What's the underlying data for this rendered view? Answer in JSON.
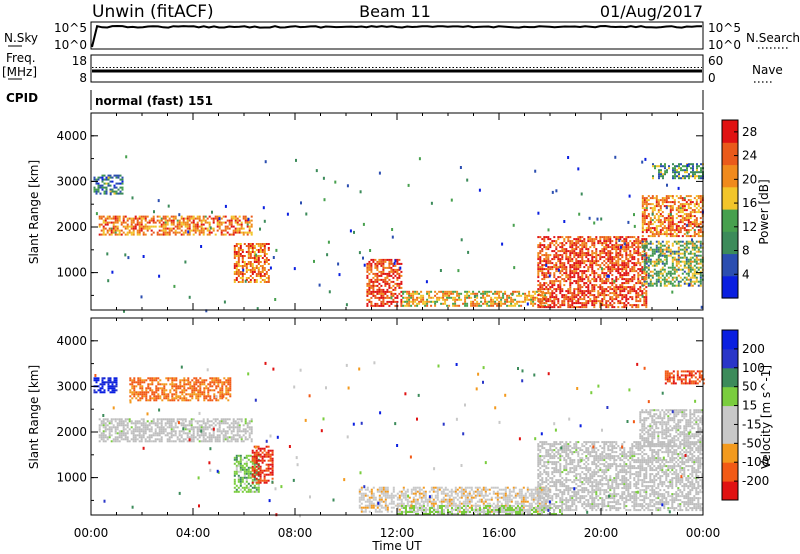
{
  "header": {
    "station": "Unwin (fitACF)",
    "beam": "Beam 11",
    "date": "01/Aug/2017"
  },
  "strip_panels": {
    "nsky": {
      "label": "N.Sky",
      "tick_labels": [
        "10^5",
        "10^0"
      ],
      "right_label": "N.Search",
      "right_tick_labels": [
        "10^5",
        "10^0"
      ]
    },
    "freq": {
      "label_line1": "Freq.",
      "label_line2": "[MHz]",
      "tick_labels": [
        "18",
        "8"
      ],
      "right_label": "Nave",
      "right_tick_labels": [
        "60",
        "0"
      ]
    },
    "cpid": {
      "label": "CPID",
      "mode_text": "normal (fast) 151"
    }
  },
  "colors": {
    "power_scale": [
      "#0a1fe0",
      "#2b4eb0",
      "#3c8b5a",
      "#47a04e",
      "#f2c52a",
      "#f08a1c",
      "#ea5a1a",
      "#e01212"
    ],
    "velocity_scale": [
      "#e01212",
      "#f25a16",
      "#f39a1e",
      "#c8c8c8",
      "#c8c8c8",
      "#7acd3e",
      "#3c8b5a",
      "#2a36c8",
      "#0a1fe0"
    ],
    "ground_scatter": "#bdbdbd"
  },
  "chart_data": [
    {
      "type": "heatmap",
      "title": "",
      "xlabel": "",
      "ylabel": "Slant Range [km]",
      "x_tick_labels": [
        "00:00",
        "04:00",
        "08:00",
        "12:00",
        "16:00",
        "20:00",
        "00:00"
      ],
      "y_tick_labels": [
        "1000",
        "2000",
        "3000",
        "4000"
      ],
      "xlim_hours": [
        0,
        24
      ],
      "ylim_km": [
        180,
        4500
      ],
      "colorbar": {
        "label": "Power [dB]",
        "ticks": [
          "4",
          "8",
          "12",
          "16",
          "20",
          "24",
          "28"
        ],
        "range": [
          0,
          30
        ]
      },
      "echo_regions": [
        {
          "t0": 0.3,
          "t1": 6.3,
          "r0": 1850,
          "r1": 2250,
          "level": 0.72
        },
        {
          "t0": 0.1,
          "t1": 1.2,
          "r0": 2750,
          "r1": 3150,
          "level": 0.3
        },
        {
          "t0": 5.6,
          "t1": 7.0,
          "r0": 800,
          "r1": 1650,
          "level": 0.75
        },
        {
          "t0": 10.8,
          "t1": 12.2,
          "r0": 250,
          "r1": 1300,
          "level": 0.85
        },
        {
          "t0": 12.2,
          "t1": 17.8,
          "r0": 250,
          "r1": 600,
          "level": 0.6
        },
        {
          "t0": 17.5,
          "t1": 21.8,
          "r0": 250,
          "r1": 1800,
          "level": 0.85
        },
        {
          "t0": 21.6,
          "t1": 24.0,
          "r0": 1800,
          "r1": 2700,
          "level": 0.72
        },
        {
          "t0": 21.6,
          "t1": 24.0,
          "r0": 700,
          "r1": 1700,
          "level": 0.45
        },
        {
          "t0": 22.0,
          "t1": 24.0,
          "r0": 3050,
          "r1": 3400,
          "level": 0.35
        }
      ]
    },
    {
      "type": "heatmap",
      "title": "",
      "xlabel": "Time UT",
      "ylabel": "Slant Range [km]",
      "x_tick_labels": [
        "00:00",
        "04:00",
        "08:00",
        "12:00",
        "16:00",
        "20:00",
        "00:00"
      ],
      "y_tick_labels": [
        "1000",
        "2000",
        "3000",
        "4000"
      ],
      "xlim_hours": [
        0,
        24
      ],
      "ylim_km": [
        180,
        4500
      ],
      "colorbar": {
        "label": "Velocity [m s^-1]",
        "ticks": [
          "-200",
          "-100",
          "-50",
          "-15",
          "15",
          "50",
          "100",
          "200"
        ],
        "range": [
          -250,
          250
        ]
      },
      "echo_regions": [
        {
          "t0": 0.3,
          "t1": 6.3,
          "r0": 1800,
          "r1": 2300,
          "velocity": 0,
          "ground": true
        },
        {
          "t0": 0.1,
          "t1": 1.0,
          "r0": 2850,
          "r1": 3200,
          "velocity": 220
        },
        {
          "t0": 1.5,
          "t1": 5.5,
          "r0": 2700,
          "r1": 3200,
          "velocity": -150
        },
        {
          "t0": 5.6,
          "t1": 6.6,
          "r0": 700,
          "r1": 1500,
          "velocity": 60
        },
        {
          "t0": 6.3,
          "t1": 7.1,
          "r0": 900,
          "r1": 1700,
          "velocity": -200
        },
        {
          "t0": 10.5,
          "t1": 18.0,
          "r0": 250,
          "r1": 800,
          "velocity": -60
        },
        {
          "t0": 12.0,
          "t1": 18.5,
          "r0": 200,
          "r1": 400,
          "velocity": 40
        },
        {
          "t0": 17.5,
          "t1": 24.0,
          "r0": 300,
          "r1": 1800,
          "velocity": 0,
          "ground": true
        },
        {
          "t0": 21.5,
          "t1": 24.0,
          "r0": 1700,
          "r1": 2500,
          "velocity": 0,
          "ground": true
        },
        {
          "t0": 22.5,
          "t1": 24.0,
          "r0": 3050,
          "r1": 3350,
          "velocity": -180
        }
      ]
    }
  ]
}
